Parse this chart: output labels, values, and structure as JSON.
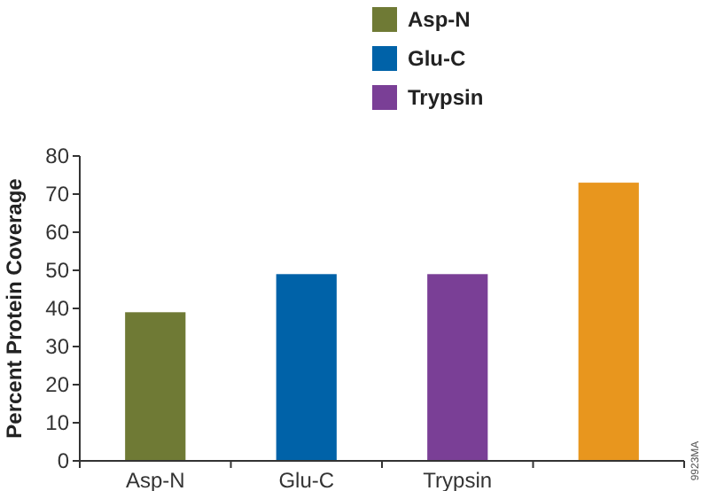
{
  "chart_data": {
    "type": "bar",
    "ylabel": "Percent Protein Coverage",
    "categories": [
      "Asp-N",
      "Glu-C",
      "Trypsin",
      null
    ],
    "series": [
      {
        "name": "Asp-N",
        "color": "#6f7a35",
        "values": [
          39,
          null,
          null,
          null
        ]
      },
      {
        "name": "Glu-C",
        "color": "#0062a8",
        "values": [
          null,
          49,
          null,
          null
        ]
      },
      {
        "name": "Trypsin",
        "color": "#7a3f96",
        "values": [
          null,
          null,
          49,
          null
        ]
      },
      {
        "color": "#e8961e",
        "values": [
          null,
          null,
          null,
          73
        ]
      }
    ],
    "ylim": [
      0,
      80
    ],
    "yticks": [
      0,
      10,
      20,
      30,
      40,
      50,
      60,
      70,
      80
    ],
    "legend": "top",
    "annotations": [
      "9923MA"
    ]
  }
}
